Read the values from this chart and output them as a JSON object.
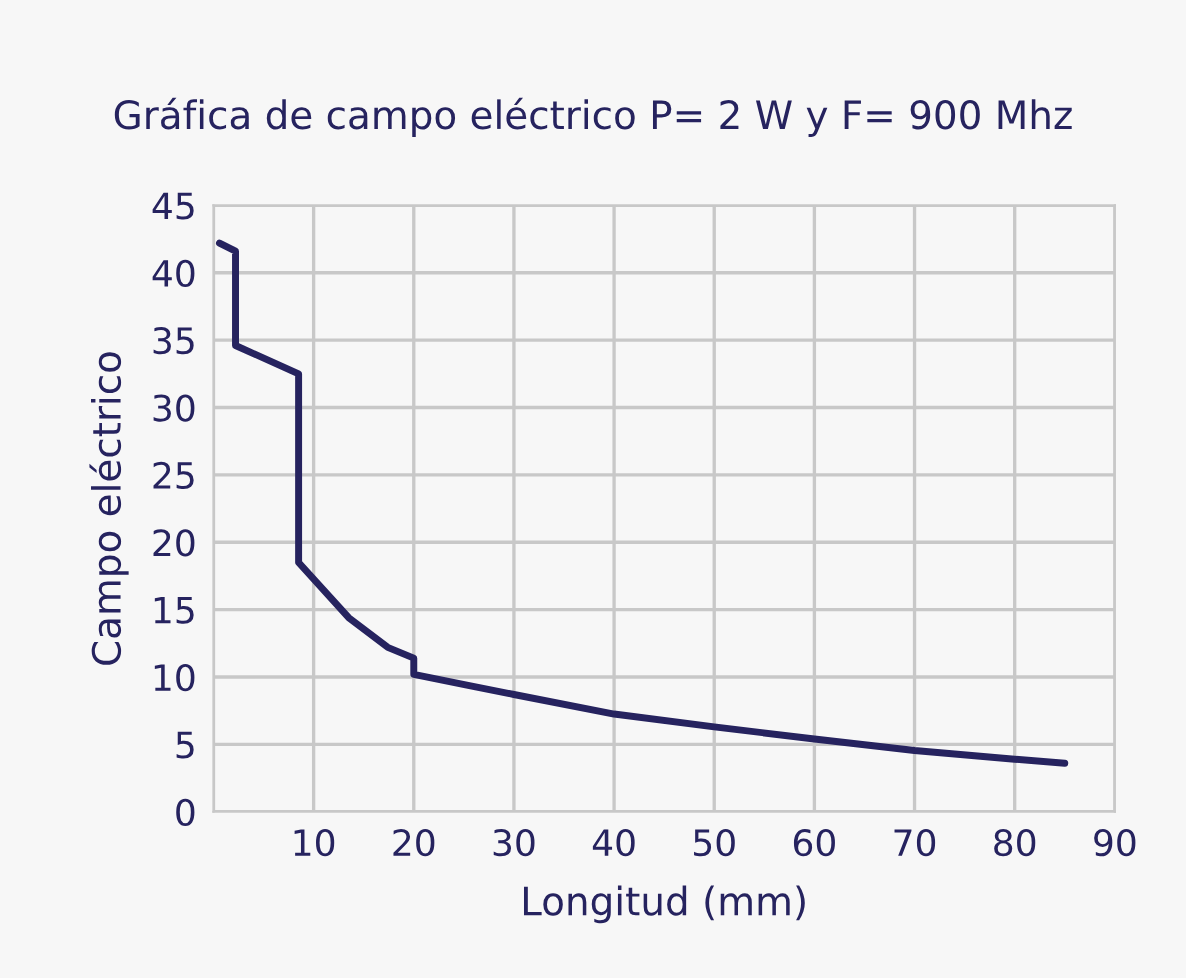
{
  "chart_data": {
    "type": "line",
    "title": "Gráfica de campo eléctrico P= 2 W y F= 900 Mhz",
    "xlabel": "Longitud (mm)",
    "ylabel": "Campo eléctrico",
    "series": [
      {
        "color": "#26235f",
        "x": [
          0.6,
          2.2,
          2.2,
          8.5,
          8.5,
          13.5,
          17.4,
          20,
          20,
          25.3,
          30,
          40,
          50,
          60,
          70,
          80,
          85
        ],
        "values": [
          42.2,
          41.6,
          34.6,
          32.5,
          18.5,
          14.4,
          12.2,
          11.4,
          10.2,
          9.4,
          8.7,
          7.25,
          6.3,
          5.4,
          4.55,
          3.9,
          3.6
        ]
      }
    ],
    "xlim": [
      0,
      90
    ],
    "xticks": [
      {
        "value": 0,
        "label": null
      },
      10,
      20,
      30,
      40,
      50,
      60,
      70,
      80,
      90
    ],
    "ylim": [
      0,
      45
    ],
    "yticks": [
      0,
      5,
      10,
      15,
      20,
      25,
      30,
      35,
      40,
      45
    ],
    "grid": true,
    "legend": false,
    "marker": "none",
    "line_style": "solid"
  }
}
